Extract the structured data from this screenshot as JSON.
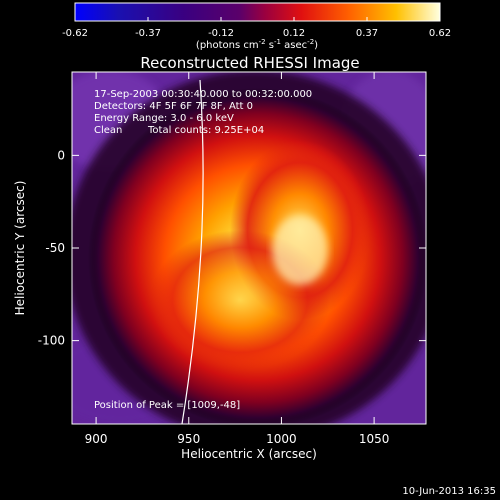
{
  "chart_data": {
    "type": "heatmap",
    "title": "Reconstructed RHESSI Image",
    "xlabel": "Heliocentric X (arcsec)",
    "ylabel": "Heliocentric Y (arcsec)",
    "xlim": [
      887,
      1078
    ],
    "ylim": [
      -145,
      45
    ],
    "x_ticks": [
      900,
      950,
      1000,
      1050
    ],
    "y_ticks": [
      0,
      -50,
      -100
    ],
    "colorbar": {
      "ticks": [
        "-0.62",
        "-0.37",
        "-0.12",
        "0.12",
        "0.37",
        "0.62"
      ],
      "unit_main": "(photons cm",
      "unit_exp1": "-2",
      "unit_mid": " s",
      "unit_exp2": "-1",
      "unit_end": " asec",
      "unit_exp3": "-2",
      "unit_close": ")"
    },
    "annotations": {
      "time": "17-Sep-2003 00:30:40.000 to 00:32:00.000",
      "detectors": "Detectors: 4F 5F 6F 7F 8F, Att 0",
      "energy": "Energy Range: 3.0 - 6.0 keV",
      "clean": "Clean",
      "counts": "Total counts: 9.25E+04",
      "peak": "Position of Peak = [1009,-48]"
    },
    "peak": [
      1009,
      -48
    ],
    "footer_date": "10-Jun-2013 16:35"
  }
}
